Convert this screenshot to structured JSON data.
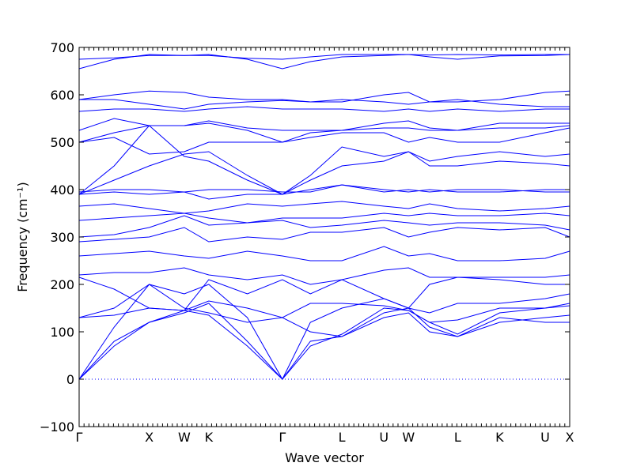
{
  "chart_data": {
    "type": "line",
    "title": "",
    "xlabel": "Wave vector",
    "ylabel": "Frequency (cm⁻¹)",
    "ylim": [
      -100,
      700
    ],
    "yticks": [
      -100,
      0,
      100,
      200,
      300,
      400,
      500,
      600,
      700
    ],
    "xticks": [
      {
        "label": "Γ",
        "x": 0
      },
      {
        "label": "X",
        "x": 1.0
      },
      {
        "label": "W",
        "x": 1.5
      },
      {
        "label": "K",
        "x": 1.85
      },
      {
        "label": "Γ",
        "x": 2.9
      },
      {
        "label": "L",
        "x": 3.75
      },
      {
        "label": "U",
        "x": 4.35
      },
      {
        "label": "W",
        "x": 4.7
      },
      {
        "label": "L",
        "x": 5.4
      },
      {
        "label": "K",
        "x": 6.0
      },
      {
        "label": "U",
        "x": 6.65
      },
      {
        "label": "X",
        "x": 7.0
      }
    ],
    "xlim": [
      0,
      7.0
    ],
    "grid": false,
    "line_color": "#0000ff",
    "zero_line_color": "#0000ff",
    "series": [
      {
        "x": [
          0,
          0.5,
          1.0,
          1.5,
          1.85,
          2.4,
          2.9,
          3.3,
          3.75,
          4.35,
          4.7,
          5.0,
          5.4,
          6.0,
          6.65,
          7.0
        ],
        "values": [
          0,
          70,
          120,
          140,
          160,
          80,
          0,
          80,
          90,
          140,
          150,
          110,
          90,
          130,
          120,
          120
        ]
      },
      {
        "x": [
          0,
          0.5,
          1.0,
          1.5,
          1.85,
          2.4,
          2.9,
          3.3,
          3.75,
          4.35,
          4.7,
          5.0,
          5.4,
          6.0,
          6.65,
          7.0
        ],
        "values": [
          0,
          80,
          120,
          145,
          135,
          70,
          0,
          70,
          95,
          150,
          145,
          120,
          95,
          140,
          150,
          160
        ]
      },
      {
        "x": [
          0,
          0.5,
          1.0,
          1.5,
          1.85,
          2.4,
          2.9,
          3.3,
          3.75,
          4.35,
          4.7,
          5.0,
          5.4,
          6.0,
          6.65,
          7.0
        ],
        "values": [
          0,
          110,
          200,
          180,
          200,
          130,
          0,
          120,
          150,
          170,
          150,
          140,
          160,
          160,
          170,
          180
        ]
      },
      {
        "x": [
          0,
          0.5,
          1.0,
          1.5,
          1.85,
          2.4,
          2.9,
          3.3,
          3.75,
          4.35,
          4.7,
          5.0,
          5.4,
          6.0,
          6.65,
          7.0
        ],
        "values": [
          130,
          135,
          150,
          145,
          165,
          150,
          130,
          160,
          160,
          155,
          145,
          120,
          125,
          150,
          150,
          155
        ]
      },
      {
        "x": [
          0,
          0.5,
          1.0,
          1.5,
          1.85,
          2.4,
          2.9,
          3.3,
          3.75,
          4.35,
          4.7,
          5.0,
          5.4,
          6.0,
          6.65,
          7.0
        ],
        "values": [
          130,
          150,
          200,
          150,
          140,
          120,
          130,
          100,
          90,
          130,
          140,
          100,
          90,
          120,
          130,
          135
        ]
      },
      {
        "x": [
          0,
          0.5,
          1.0,
          1.5,
          1.85,
          2.4,
          2.9,
          3.3,
          3.75,
          4.35,
          4.7,
          5.0,
          5.4,
          6.0,
          6.65,
          7.0
        ],
        "values": [
          215,
          190,
          150,
          145,
          210,
          180,
          210,
          180,
          210,
          170,
          150,
          200,
          215,
          210,
          200,
          200
        ]
      },
      {
        "x": [
          0,
          0.5,
          1.0,
          1.5,
          1.85,
          2.4,
          2.9,
          3.3,
          3.75,
          4.35,
          4.7,
          5.0,
          5.4,
          6.0,
          6.65,
          7.0
        ],
        "values": [
          220,
          225,
          225,
          235,
          220,
          210,
          220,
          200,
          210,
          230,
          235,
          215,
          215,
          215,
          215,
          220
        ]
      },
      {
        "x": [
          0,
          0.5,
          1.0,
          1.5,
          1.85,
          2.4,
          2.9,
          3.3,
          3.75,
          4.35,
          4.7,
          5.0,
          5.4,
          6.0,
          6.65,
          7.0
        ],
        "values": [
          260,
          265,
          270,
          260,
          255,
          270,
          260,
          250,
          250,
          280,
          260,
          265,
          250,
          250,
          255,
          270
        ]
      },
      {
        "x": [
          0,
          0.5,
          1.0,
          1.5,
          1.85,
          2.4,
          2.9,
          3.3,
          3.75,
          4.35,
          4.7,
          5.0,
          5.4,
          6.0,
          6.65,
          7.0
        ],
        "values": [
          290,
          295,
          300,
          320,
          290,
          300,
          295,
          310,
          310,
          320,
          300,
          310,
          320,
          315,
          320,
          300
        ]
      },
      {
        "x": [
          0,
          0.5,
          1.0,
          1.5,
          1.85,
          2.4,
          2.9,
          3.3,
          3.75,
          4.35,
          4.7,
          5.0,
          5.4,
          6.0,
          6.65,
          7.0
        ],
        "values": [
          300,
          305,
          320,
          345,
          325,
          330,
          335,
          320,
          325,
          335,
          330,
          325,
          330,
          330,
          325,
          315
        ]
      },
      {
        "x": [
          0,
          0.5,
          1.0,
          1.5,
          1.85,
          2.4,
          2.9,
          3.3,
          3.75,
          4.35,
          4.7,
          5.0,
          5.4,
          6.0,
          6.65,
          7.0
        ],
        "values": [
          335,
          340,
          345,
          350,
          340,
          330,
          340,
          340,
          340,
          350,
          345,
          350,
          345,
          345,
          350,
          345
        ]
      },
      {
        "x": [
          0,
          0.5,
          1.0,
          1.5,
          1.85,
          2.4,
          2.9,
          3.3,
          3.75,
          4.35,
          4.7,
          5.0,
          5.4,
          6.0,
          6.65,
          7.0
        ],
        "values": [
          365,
          370,
          360,
          350,
          355,
          370,
          365,
          370,
          375,
          365,
          360,
          370,
          360,
          355,
          360,
          365
        ]
      },
      {
        "x": [
          0,
          0.5,
          1.0,
          1.5,
          1.85,
          2.4,
          2.9,
          3.3,
          3.75,
          4.35,
          4.7,
          5.0,
          5.4,
          6.0,
          6.65,
          7.0
        ],
        "values": [
          390,
          395,
          390,
          395,
          380,
          390,
          390,
          400,
          410,
          395,
          400,
          395,
          400,
          400,
          395,
          395
        ]
      },
      {
        "x": [
          0,
          0.5,
          1.0,
          1.5,
          1.85,
          2.4,
          2.9,
          3.3,
          3.75,
          4.35,
          4.7,
          5.0,
          5.4,
          6.0,
          6.65,
          7.0
        ],
        "values": [
          395,
          400,
          400,
          395,
          400,
          400,
          395,
          395,
          410,
          400,
          395,
          400,
          395,
          395,
          400,
          400
        ]
      },
      {
        "x": [
          0,
          0.5,
          1.0,
          1.5,
          1.85,
          2.4,
          2.9,
          3.3,
          3.75,
          4.35,
          4.7,
          5.0,
          5.4,
          6.0,
          6.65,
          7.0
        ],
        "values": [
          390,
          420,
          450,
          475,
          480,
          430,
          390,
          420,
          450,
          460,
          480,
          450,
          450,
          460,
          455,
          450
        ]
      },
      {
        "x": [
          0,
          0.5,
          1.0,
          1.5,
          1.85,
          2.4,
          2.9,
          3.3,
          3.75,
          4.35,
          4.7,
          5.0,
          5.4,
          6.0,
          6.65,
          7.0
        ],
        "values": [
          390,
          450,
          535,
          470,
          460,
          420,
          390,
          430,
          490,
          470,
          480,
          460,
          470,
          480,
          470,
          475
        ]
      },
      {
        "x": [
          0,
          0.5,
          1.0,
          1.5,
          1.85,
          2.4,
          2.9,
          3.3,
          3.75,
          4.35,
          4.7,
          5.0,
          5.4,
          6.0,
          6.65,
          7.0
        ],
        "values": [
          500,
          510,
          475,
          480,
          500,
          500,
          500,
          510,
          520,
          520,
          500,
          510,
          500,
          500,
          520,
          530
        ]
      },
      {
        "x": [
          0,
          0.5,
          1.0,
          1.5,
          1.85,
          2.4,
          2.9,
          3.3,
          3.75,
          4.35,
          4.7,
          5.0,
          5.4,
          6.0,
          6.65,
          7.0
        ],
        "values": [
          500,
          520,
          535,
          535,
          540,
          525,
          500,
          520,
          525,
          540,
          545,
          530,
          525,
          540,
          540,
          540
        ]
      },
      {
        "x": [
          0,
          0.5,
          1.0,
          1.5,
          1.85,
          2.4,
          2.9,
          3.3,
          3.75,
          4.35,
          4.7,
          5.0,
          5.4,
          6.0,
          6.65,
          7.0
        ],
        "values": [
          525,
          550,
          535,
          535,
          545,
          530,
          525,
          525,
          525,
          530,
          530,
          525,
          525,
          530,
          530,
          535
        ]
      },
      {
        "x": [
          0,
          0.5,
          1.0,
          1.5,
          1.85,
          2.4,
          2.9,
          3.3,
          3.75,
          4.35,
          4.7,
          5.0,
          5.4,
          6.0,
          6.65,
          7.0
        ],
        "values": [
          565,
          570,
          570,
          565,
          570,
          575,
          570,
          570,
          570,
          565,
          570,
          565,
          570,
          565,
          570,
          570
        ]
      },
      {
        "x": [
          0,
          0.5,
          1.0,
          1.5,
          1.85,
          2.4,
          2.9,
          3.3,
          3.75,
          4.35,
          4.7,
          5.0,
          5.4,
          6.0,
          6.65,
          7.0
        ],
        "values": [
          590,
          600,
          608,
          605,
          595,
          590,
          590,
          585,
          585,
          600,
          605,
          585,
          585,
          590,
          605,
          608
        ]
      },
      {
        "x": [
          0,
          0.5,
          1.0,
          1.5,
          1.85,
          2.4,
          2.9,
          3.3,
          3.75,
          4.35,
          4.7,
          5.0,
          5.4,
          6.0,
          6.65,
          7.0
        ],
        "values": [
          590,
          590,
          580,
          570,
          580,
          585,
          588,
          585,
          590,
          585,
          580,
          585,
          590,
          580,
          575,
          575
        ]
      },
      {
        "x": [
          0,
          0.5,
          1.0,
          1.5,
          1.85,
          2.4,
          2.9,
          3.3,
          3.75,
          4.35,
          4.7,
          5.0,
          5.4,
          6.0,
          6.65,
          7.0
        ],
        "values": [
          655,
          675,
          685,
          683,
          685,
          675,
          655,
          670,
          680,
          683,
          685,
          680,
          675,
          682,
          683,
          685
        ]
      },
      {
        "x": [
          0,
          0.5,
          1.0,
          1.5,
          1.85,
          2.4,
          2.9,
          3.3,
          3.75,
          4.35,
          4.7,
          5.0,
          5.4,
          6.0,
          6.65,
          7.0
        ],
        "values": [
          675,
          678,
          683,
          683,
          683,
          677,
          675,
          680,
          685,
          685,
          685,
          684,
          685,
          684,
          685,
          685
        ]
      }
    ]
  }
}
